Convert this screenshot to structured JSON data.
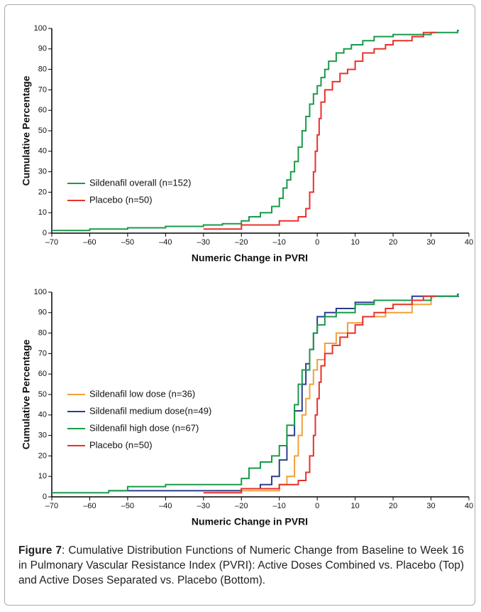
{
  "chart_data": [
    {
      "type": "line",
      "step": true,
      "legend": "lower left",
      "grid": false,
      "xlabel": "Numeric Change in PVRI",
      "ylabel": "Cumulative Percentage",
      "xlim": [
        -70,
        40
      ],
      "ylim": [
        0,
        100
      ],
      "xticks": [
        {
          "value": -70,
          "label": "–70"
        },
        {
          "value": -60,
          "label": "–60"
        },
        {
          "value": -50,
          "label": "–50"
        },
        {
          "value": -40,
          "label": "–40"
        },
        {
          "value": -30,
          "label": "–30"
        },
        {
          "value": -20,
          "label": "–20"
        },
        {
          "value": -10,
          "label": "–10"
        },
        0,
        10,
        20,
        30,
        40
      ],
      "yticks": [
        0,
        10,
        20,
        30,
        40,
        50,
        60,
        70,
        80,
        90,
        100
      ],
      "series": [
        {
          "name": "Sildenafil overall (n=152)",
          "color": "#1a9a4a",
          "x": [
            -70,
            -60,
            -50,
            -40,
            -30,
            -25,
            -20,
            -18,
            -15,
            -12,
            -10,
            -9,
            -8,
            -7,
            -6,
            -5,
            -4,
            -3,
            -2,
            -1,
            0,
            1,
            2,
            3,
            5,
            7,
            9,
            12,
            15,
            20,
            30,
            37
          ],
          "values": [
            1.3,
            2,
            2.6,
            3.3,
            4,
            4.6,
            6,
            8,
            10,
            13,
            17,
            22,
            26,
            30,
            35,
            42,
            50,
            57,
            63,
            68,
            72,
            76,
            80,
            84,
            88,
            90,
            92,
            94,
            96,
            97,
            98,
            99
          ]
        },
        {
          "name": "Placebo (n=50)",
          "color": "#e8312a",
          "x": [
            -30,
            -20,
            -10,
            -5,
            -3,
            -2,
            -1,
            -0.5,
            0,
            0.5,
            1,
            2,
            4,
            6,
            8,
            10,
            12,
            15,
            18,
            20,
            25,
            28,
            31
          ],
          "values": [
            2,
            4,
            6,
            8,
            12,
            20,
            30,
            40,
            48,
            56,
            64,
            70,
            74,
            78,
            80,
            84,
            88,
            90,
            92,
            94,
            96,
            98,
            98
          ]
        }
      ]
    },
    {
      "type": "line",
      "step": true,
      "legend": "lower left",
      "grid": false,
      "xlabel": "Numeric Change in PVRI",
      "ylabel": "Cumulative Percentage",
      "xlim": [
        -70,
        40
      ],
      "ylim": [
        0,
        100
      ],
      "xticks": [
        {
          "value": -70,
          "label": "–70"
        },
        {
          "value": -60,
          "label": "–60"
        },
        {
          "value": -50,
          "label": "–50"
        },
        {
          "value": -40,
          "label": "–40"
        },
        {
          "value": -30,
          "label": "–30"
        },
        {
          "value": -20,
          "label": "–20"
        },
        {
          "value": -10,
          "label": "–10"
        },
        0,
        10,
        20,
        30,
        40
      ],
      "yticks": [
        0,
        10,
        20,
        30,
        40,
        50,
        60,
        70,
        80,
        90,
        100
      ],
      "series": [
        {
          "name": "Sildenafil low dose (n=36)",
          "color": "#f2a03a",
          "x": [
            -27,
            -20,
            -10,
            -8,
            -6,
            -5,
            -4,
            -3,
            -2,
            -1,
            0,
            2,
            5,
            8,
            12,
            18,
            25,
            30
          ],
          "values": [
            3,
            3,
            6,
            10,
            20,
            30,
            40,
            48,
            55,
            62,
            67,
            75,
            80,
            85,
            88,
            90,
            94,
            97
          ]
        },
        {
          "name": "Sildenafil medium dose(n=49)",
          "color": "#2b3d8f",
          "x": [
            -55,
            -20,
            -15,
            -12,
            -10,
            -8,
            -6,
            -4,
            -3,
            -2,
            -1,
            0,
            2,
            5,
            10,
            15,
            25,
            37
          ],
          "values": [
            3,
            4,
            6,
            10,
            18,
            30,
            42,
            55,
            65,
            72,
            80,
            88,
            90,
            92,
            95,
            96,
            98,
            98
          ]
        },
        {
          "name": "Sildenafil high dose (n=67)",
          "color": "#1a9a4a",
          "x": [
            -70,
            -55,
            -50,
            -40,
            -20,
            -18,
            -15,
            -12,
            -10,
            -8,
            -6,
            -5,
            -4,
            -2,
            -1,
            0,
            2,
            5,
            10,
            15,
            30,
            37
          ],
          "values": [
            2,
            3,
            5,
            6,
            9,
            14,
            17,
            20,
            25,
            35,
            45,
            55,
            62,
            72,
            80,
            84,
            88,
            90,
            94,
            96,
            98,
            99
          ]
        },
        {
          "name": "Placebo (n=50)",
          "color": "#e8312a",
          "x": [
            -30,
            -20,
            -10,
            -5,
            -3,
            -2,
            -1,
            -0.5,
            0,
            0.5,
            1,
            2,
            4,
            6,
            8,
            10,
            12,
            15,
            18,
            20,
            25,
            28,
            31
          ],
          "values": [
            2,
            4,
            6,
            8,
            12,
            20,
            30,
            40,
            48,
            56,
            64,
            70,
            74,
            78,
            80,
            84,
            88,
            90,
            92,
            94,
            96,
            98,
            98
          ]
        }
      ]
    }
  ],
  "caption": {
    "label": "Figure 7",
    "text": ": Cumulative Distribution Functions of Numeric Change from Baseline to Week 16 in Pulmonary Vascular Resistance Index (PVRI): Active Doses Combined vs. Placebo (Top) and Active Doses Separated vs. Placebo (Bottom)."
  }
}
